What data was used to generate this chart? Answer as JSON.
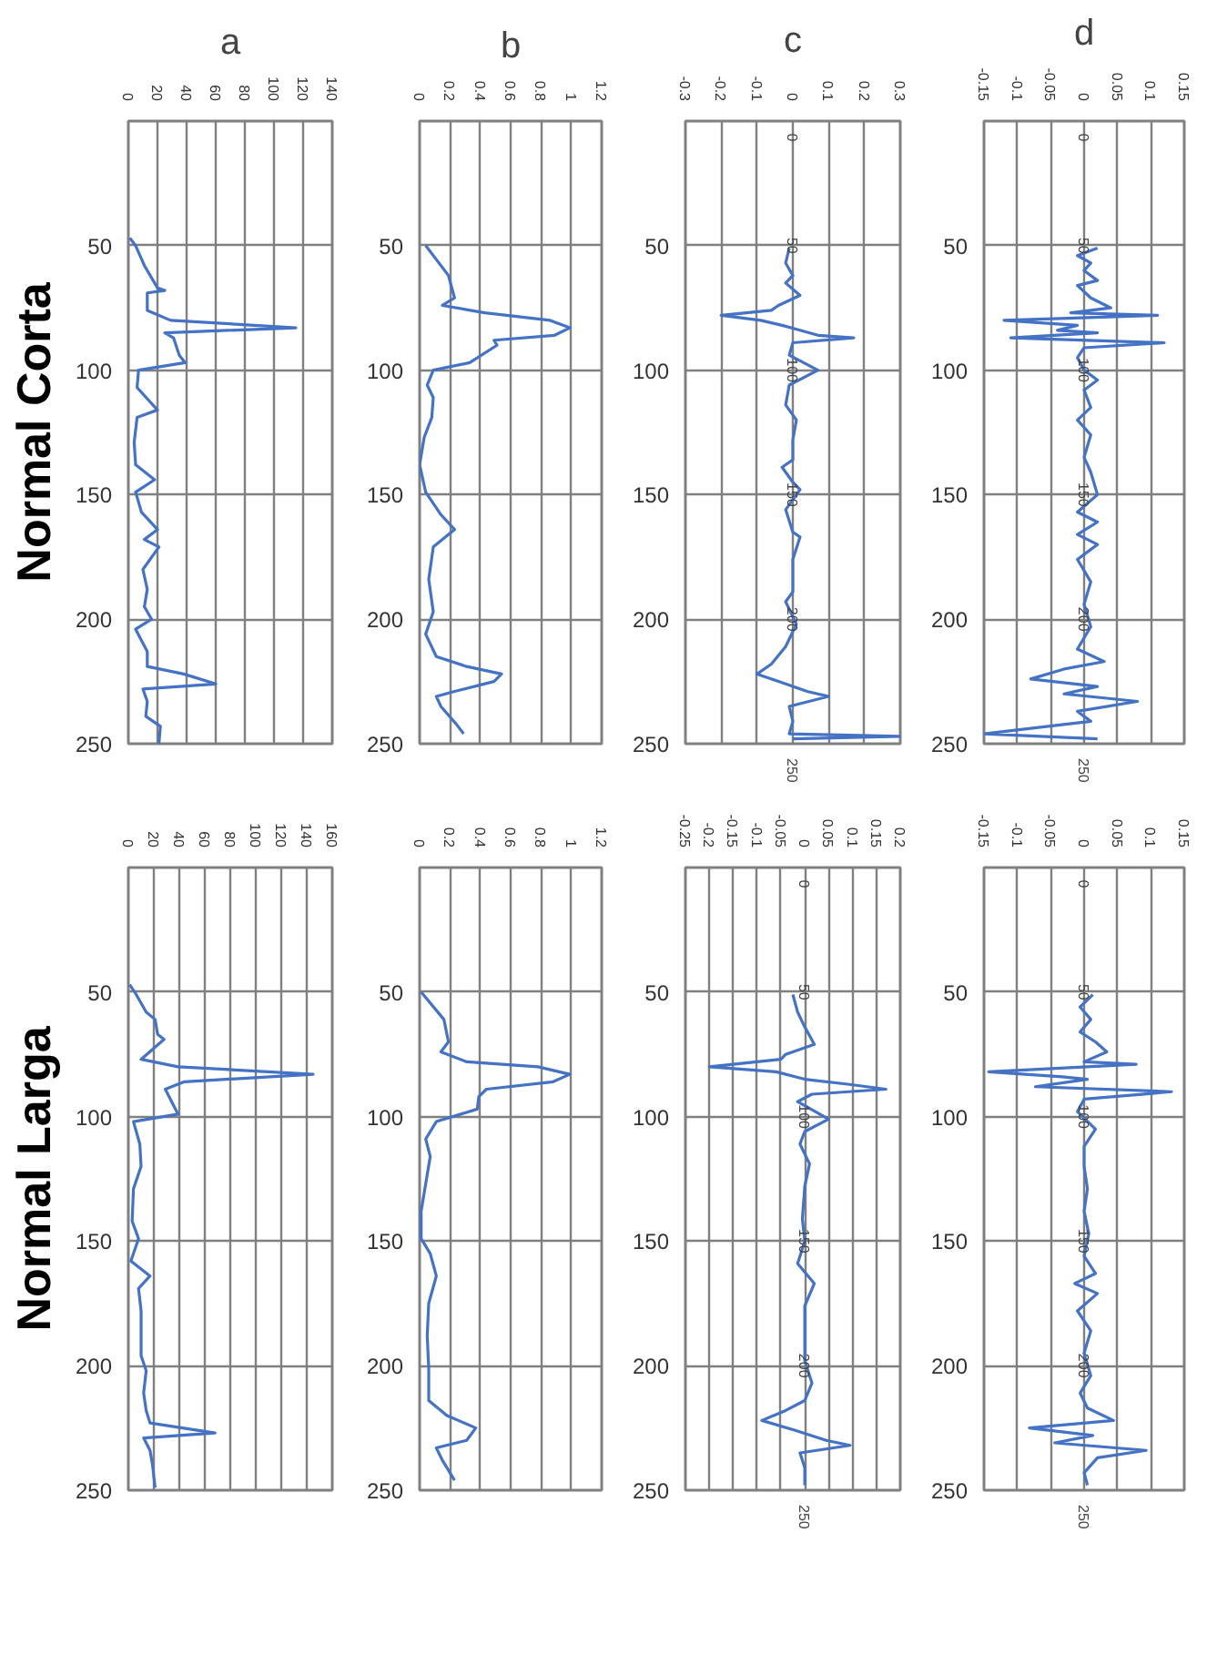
{
  "chart_data": [
    {
      "type": "line",
      "title": "a",
      "ylabel": "Normal Corta",
      "xlim": [
        0,
        140
      ],
      "xticks": [
        0,
        20,
        40,
        60,
        80,
        100,
        120,
        140
      ],
      "ylim": [
        250,
        0
      ],
      "yticks": [
        50,
        100,
        150,
        200,
        250
      ],
      "grid": true,
      "series": [
        {
          "color": "#4472c4",
          "x": [
            1,
            5,
            11,
            15,
            20,
            25,
            13,
            13,
            29,
            115,
            25,
            31,
            35,
            39,
            7,
            6,
            20,
            6,
            4,
            5,
            18,
            5,
            9,
            20,
            11,
            21,
            10,
            13,
            11,
            16,
            5,
            13,
            13,
            38,
            60,
            10,
            13,
            12,
            22,
            21
          ],
          "values": [
            47,
            50,
            58,
            62,
            67,
            68,
            69,
            76,
            80,
            83,
            85,
            87,
            94,
            97,
            100,
            107,
            116,
            119,
            129,
            138,
            144,
            149,
            157,
            164,
            168,
            171,
            180,
            188,
            195,
            200,
            204,
            213,
            219,
            222,
            226,
            228,
            233,
            239,
            243,
            250
          ]
        }
      ]
    },
    {
      "type": "line",
      "title": "b",
      "xlim": [
        0,
        1.2
      ],
      "xticks": [
        0,
        0.2,
        0.4,
        0.6,
        0.8,
        1,
        1.2
      ],
      "ylim": [
        250,
        0
      ],
      "yticks": [
        50,
        100,
        150,
        200,
        250
      ],
      "grid": true,
      "series": [
        {
          "color": "#4472c4",
          "x": [
            0.04,
            0.19,
            0.23,
            0.15,
            0.43,
            0.86,
            0.99,
            0.89,
            0.49,
            0.51,
            0.33,
            0.09,
            0.05,
            0.09,
            0.08,
            0.03,
            0,
            0.04,
            0.14,
            0.23,
            0.09,
            0.06,
            0.09,
            0.04,
            0.11,
            0.31,
            0.54,
            0.49,
            0.23,
            0.11,
            0.14,
            0.24,
            0.29
          ],
          "values": [
            50,
            62,
            71,
            74,
            77,
            80,
            83,
            86,
            88,
            90,
            97,
            100,
            106,
            111,
            119,
            127,
            138,
            149,
            158,
            164,
            171,
            184,
            197,
            206,
            215,
            219,
            222,
            225,
            229,
            231,
            235,
            242,
            246
          ]
        }
      ]
    },
    {
      "type": "line",
      "title": "c",
      "xlim": [
        -0.3,
        0.3
      ],
      "xticks": [
        -0.3,
        -0.2,
        -0.1,
        0,
        0.1,
        0.2,
        0.3
      ],
      "ylim": [
        250,
        0
      ],
      "yticks": [
        50,
        100,
        150,
        200,
        250
      ],
      "grid": true,
      "annotations": [
        "0",
        "50",
        "100",
        "150",
        "200",
        "250"
      ],
      "series": [
        {
          "color": "#4472c4",
          "x": [
            -0.01,
            -0.02,
            0,
            -0.02,
            0.02,
            -0.04,
            -0.06,
            -0.2,
            -0.09,
            -0.03,
            0.02,
            0.07,
            0.17,
            0,
            -0.01,
            0.07,
            -0.01,
            -0.02,
            0.01,
            0,
            0,
            -0.03,
            0,
            0.02,
            -0.02,
            0,
            0.02,
            0,
            0,
            -0.02,
            0.01,
            -0.02,
            -0.06,
            -0.1,
            -0.04,
            0.04,
            0.1,
            -0.01,
            0,
            -0.01,
            0.3,
            0
          ],
          "values": [
            51,
            57,
            62,
            65,
            70,
            74,
            76,
            78,
            80,
            82,
            84,
            86,
            87,
            89,
            94,
            100,
            106,
            114,
            120,
            128,
            136,
            139,
            145,
            148,
            156,
            165,
            167,
            176,
            189,
            193,
            202,
            211,
            218,
            222,
            225,
            229,
            231,
            235,
            241,
            246,
            247,
            248
          ]
        }
      ]
    },
    {
      "type": "line",
      "title": "d",
      "xlim": [
        -0.15,
        0.15
      ],
      "xticks": [
        -0.15,
        -0.1,
        -0.05,
        0,
        0.05,
        0.1,
        0.15
      ],
      "ylim": [
        250,
        0
      ],
      "yticks": [
        50,
        100,
        150,
        200,
        250
      ],
      "grid": true,
      "annotations": [
        "0",
        "50",
        "100",
        "150",
        "200",
        "250"
      ],
      "series": [
        {
          "color": "#4472c4",
          "x": [
            0.02,
            -0.01,
            0.01,
            0,
            0.02,
            -0.01,
            0.01,
            0.04,
            -0.02,
            0.11,
            -0.12,
            -0.01,
            -0.04,
            0.02,
            -0.11,
            0.12,
            0,
            -0.01,
            0,
            0.02,
            0,
            0.01,
            -0.01,
            0.01,
            0,
            0.01,
            0.02,
            -0.01,
            0.02,
            -0.01,
            0.02,
            -0.01,
            0.01,
            0,
            0.01,
            -0.01,
            0.03,
            -0.03,
            -0.08,
            0.02,
            -0.03,
            0.08,
            -0.01,
            0.01,
            -0.15,
            0.02
          ],
          "values": [
            51,
            54,
            57,
            60,
            64,
            66,
            71,
            75,
            77,
            78,
            80,
            82,
            84,
            85,
            87,
            89,
            91,
            95,
            100,
            104,
            108,
            115,
            120,
            126,
            135,
            141,
            150,
            157,
            161,
            166,
            170,
            176,
            185,
            194,
            203,
            212,
            217,
            220,
            224,
            227,
            230,
            233,
            237,
            241,
            246,
            248
          ]
        }
      ]
    },
    {
      "type": "line",
      "ylabel": "Normal Larga",
      "xlim": [
        0,
        160
      ],
      "xticks": [
        0,
        20,
        40,
        60,
        80,
        100,
        120,
        140,
        160
      ],
      "ylim": [
        250,
        0
      ],
      "yticks": [
        50,
        100,
        150,
        200,
        250
      ],
      "grid": true,
      "series": [
        {
          "color": "#4472c4",
          "x": [
            1,
            5,
            14,
            21,
            23,
            28,
            10,
            39,
            145,
            44,
            29,
            35,
            39,
            4,
            9,
            10,
            4,
            3,
            8,
            2,
            17,
            8,
            10,
            10,
            10,
            14,
            12,
            14,
            17,
            68,
            12,
            17,
            19,
            21
          ],
          "values": [
            47,
            50,
            58,
            61,
            67,
            69,
            77,
            80,
            83,
            86,
            89,
            95,
            99,
            102,
            111,
            120,
            129,
            142,
            149,
            158,
            164,
            169,
            178,
            187,
            196,
            202,
            211,
            218,
            223,
            227,
            229,
            234,
            240,
            249
          ]
        }
      ]
    },
    {
      "type": "line",
      "xlim": [
        0,
        1.2
      ],
      "xticks": [
        0,
        0.2,
        0.4,
        0.6,
        0.8,
        1,
        1.2
      ],
      "ylim": [
        250,
        0
      ],
      "yticks": [
        50,
        100,
        150,
        200,
        250
      ],
      "grid": true,
      "series": [
        {
          "color": "#4472c4",
          "x": [
            0.01,
            0.16,
            0.19,
            0.14,
            0.31,
            0.78,
            0.99,
            0.88,
            0.44,
            0.39,
            0.38,
            0.11,
            0.04,
            0.07,
            0.04,
            0.01,
            0.01,
            0.07,
            0.11,
            0.06,
            0.05,
            0.06,
            0.06,
            0.18,
            0.37,
            0.31,
            0.11,
            0.15,
            0.23
          ],
          "values": [
            50,
            61,
            70,
            74,
            78,
            80,
            83,
            86,
            89,
            92,
            97,
            102,
            109,
            116,
            127,
            138,
            149,
            155,
            164,
            175,
            188,
            201,
            214,
            220,
            225,
            230,
            233,
            238,
            246
          ]
        }
      ]
    },
    {
      "type": "line",
      "xlim": [
        -0.25,
        0.2
      ],
      "xticks": [
        -0.25,
        -0.2,
        -0.15,
        -0.1,
        -0.05,
        0,
        0.05,
        0.1,
        0.15,
        0.2
      ],
      "ylim": [
        250,
        0
      ],
      "yticks": [
        50,
        100,
        150,
        200,
        250
      ],
      "grid": true,
      "annotations": [
        "0",
        "50",
        "100",
        "150",
        "200",
        "250"
      ],
      "series": [
        {
          "color": "#4472c4",
          "x": [
            -0.025,
            -0.015,
            0,
            0.02,
            -0.04,
            -0.05,
            -0.2,
            -0.06,
            0,
            0.09,
            0.17,
            0.015,
            -0.015,
            0.05,
            0,
            -0.01,
            0.01,
            0,
            -0.005,
            0,
            -0.015,
            0.02,
            0,
            0,
            0,
            0.015,
            0,
            -0.04,
            -0.09,
            -0.02,
            0.045,
            0.095,
            -0.01,
            0,
            0
          ],
          "values": [
            51,
            58,
            64,
            71,
            75,
            77,
            80,
            82,
            85,
            87,
            89,
            91,
            94,
            101,
            106,
            111,
            119,
            128,
            141,
            150,
            159,
            167,
            176,
            189,
            198,
            207,
            214,
            218,
            222,
            226,
            230,
            232,
            235,
            241,
            248
          ]
        }
      ]
    },
    {
      "type": "line",
      "xlim": [
        -0.15,
        0.15
      ],
      "xticks": [
        -0.15,
        -0.1,
        -0.05,
        0,
        0.05,
        0.1,
        0.15
      ],
      "ylim": [
        250,
        0
      ],
      "yticks": [
        50,
        100,
        150,
        200,
        250
      ],
      "grid": true,
      "annotations": [
        "0",
        "50",
        "100",
        "150",
        "200",
        "250"
      ],
      "series": [
        {
          "color": "#4472c4",
          "x": [
            0.013,
            -0.006,
            0.01,
            -0.006,
            0.017,
            0.034,
            0,
            0.078,
            -0.143,
            -0.033,
            0.005,
            -0.073,
            0.131,
            0,
            -0.01,
            0.017,
            0,
            0,
            0.005,
            0,
            0.007,
            0,
            0.017,
            -0.014,
            0.02,
            -0.01,
            0.01,
            0,
            0.01,
            -0.006,
            0.005,
            0.044,
            -0.082,
            0.013,
            -0.044,
            0.093,
            0.02,
            0,
            0.005
          ],
          "values": [
            51,
            56,
            61,
            66,
            70,
            74,
            78,
            79,
            82,
            84,
            85,
            88,
            90,
            93,
            98,
            105,
            112,
            120,
            129,
            138,
            147,
            156,
            163,
            167,
            171,
            178,
            186,
            195,
            204,
            211,
            217,
            222,
            225,
            228,
            231,
            234,
            237,
            243,
            248
          ]
        }
      ]
    }
  ]
}
